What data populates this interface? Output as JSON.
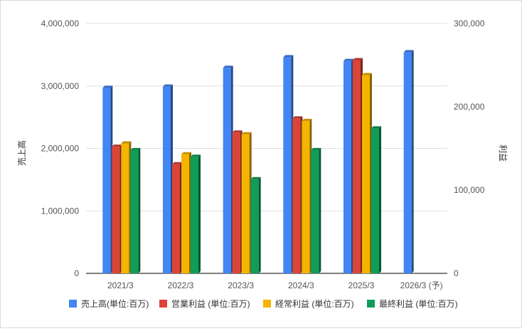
{
  "chart_data": {
    "type": "bar",
    "categories": [
      "2021/3",
      "2022/3",
      "2023/3",
      "2024/3",
      "2025/3",
      "2026/3 (予)"
    ],
    "ylabel_left": "売上高",
    "ylabel_right": "利益",
    "ylim_left": [
      0,
      4000000
    ],
    "ylim_right": [
      0,
      300000
    ],
    "yticks_left": [
      "0",
      "1,000,000",
      "2,000,000",
      "3,000,000",
      "4,000,000"
    ],
    "yticks_right": [
      "0",
      "100,000",
      "200,000",
      "300,000"
    ],
    "legend_position": "bottom",
    "grid": true,
    "series": [
      {
        "name": "売上高(単位:百万)",
        "axis": "left",
        "color": "#4285f4",
        "values": [
          2970000,
          2990000,
          3290000,
          3460000,
          3400000,
          3540000
        ]
      },
      {
        "name": "営業利益 (単位:百万)",
        "axis": "right",
        "color": "#db4437",
        "values": [
          152000,
          131000,
          169000,
          186000,
          256000,
          null
        ]
      },
      {
        "name": "経常利益 (単位:百万)",
        "axis": "right",
        "color": "#f4b400",
        "values": [
          156000,
          143000,
          167000,
          183000,
          238000,
          null
        ]
      },
      {
        "name": "最終利益 (単位:百万)",
        "axis": "right",
        "color": "#0f9d58",
        "values": [
          148000,
          140000,
          113000,
          148000,
          174000,
          null
        ]
      }
    ]
  }
}
